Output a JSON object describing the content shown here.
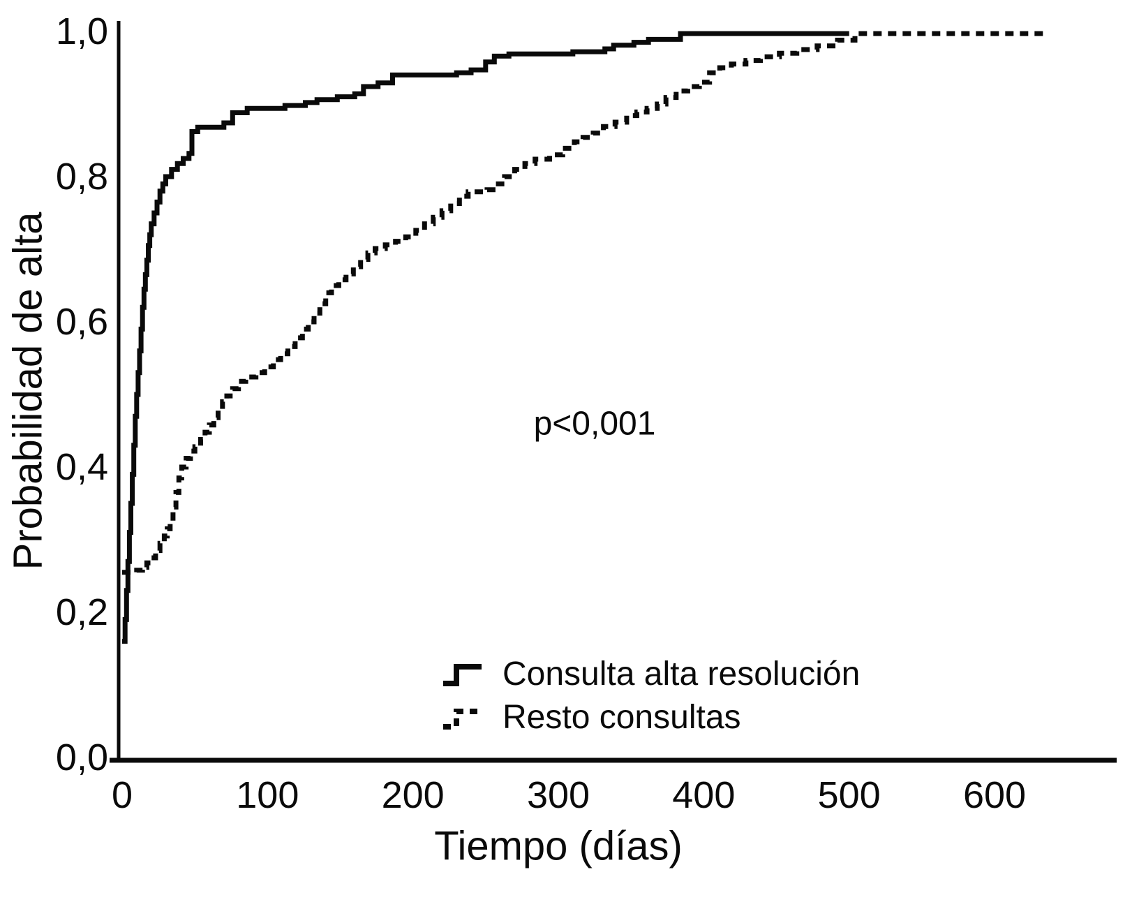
{
  "chart_data": {
    "type": "line",
    "subtype": "kaplan-meier-step",
    "title": "",
    "xlabel": "Tiempo (días)",
    "ylabel": "Probabilidad de alta",
    "annotation": "p<0,001",
    "xlim": [
      0,
      640
    ],
    "ylim": [
      0.0,
      1.0
    ],
    "grid": false,
    "legend_position": "inside-bottom-center",
    "xticks": [
      0,
      100,
      200,
      300,
      400,
      500,
      600
    ],
    "xtick_labels": [
      "0",
      "100",
      "200",
      "300",
      "400",
      "500",
      "600"
    ],
    "yticks": [
      0.0,
      0.2,
      0.4,
      0.6,
      0.8,
      1.0
    ],
    "ytick_labels": [
      "0,0",
      "0,2",
      "0,4",
      "0,6",
      "0,8",
      "1,0"
    ],
    "legend": [
      {
        "name": "Consulta alta resolución",
        "style": "solid"
      },
      {
        "name": "Resto consultas",
        "style": "dashed"
      }
    ],
    "line_color": "#0a0a0a",
    "series": [
      {
        "name": "Consulta alta resolución",
        "style": "solid",
        "points": [
          [
            0,
            0.16
          ],
          [
            2,
            0.19
          ],
          [
            3,
            0.23
          ],
          [
            4,
            0.27
          ],
          [
            5,
            0.31
          ],
          [
            6,
            0.35
          ],
          [
            7,
            0.39
          ],
          [
            8,
            0.43
          ],
          [
            9,
            0.47
          ],
          [
            10,
            0.5
          ],
          [
            11,
            0.53
          ],
          [
            12,
            0.56
          ],
          [
            13,
            0.59
          ],
          [
            14,
            0.62
          ],
          [
            15,
            0.645
          ],
          [
            16,
            0.665
          ],
          [
            17,
            0.685
          ],
          [
            18,
            0.705
          ],
          [
            19,
            0.72
          ],
          [
            20,
            0.735
          ],
          [
            22,
            0.75
          ],
          [
            24,
            0.765
          ],
          [
            26,
            0.78
          ],
          [
            28,
            0.79
          ],
          [
            30,
            0.8
          ],
          [
            34,
            0.81
          ],
          [
            38,
            0.818
          ],
          [
            42,
            0.825
          ],
          [
            46,
            0.832
          ],
          [
            48,
            0.862
          ],
          [
            52,
            0.868
          ],
          [
            70,
            0.874
          ],
          [
            76,
            0.888
          ],
          [
            86,
            0.894
          ],
          [
            112,
            0.898
          ],
          [
            126,
            0.902
          ],
          [
            134,
            0.906
          ],
          [
            148,
            0.91
          ],
          [
            160,
            0.914
          ],
          [
            166,
            0.924
          ],
          [
            176,
            0.929
          ],
          [
            186,
            0.94
          ],
          [
            230,
            0.943
          ],
          [
            240,
            0.947
          ],
          [
            250,
            0.958
          ],
          [
            256,
            0.966
          ],
          [
            266,
            0.969
          ],
          [
            310,
            0.972
          ],
          [
            332,
            0.976
          ],
          [
            338,
            0.981
          ],
          [
            352,
            0.985
          ],
          [
            362,
            0.989
          ],
          [
            384,
            0.997
          ],
          [
            500,
            0.997
          ]
        ]
      },
      {
        "name": "Resto consultas",
        "style": "dashed",
        "points": [
          [
            0,
            0.255
          ],
          [
            10,
            0.258
          ],
          [
            14,
            0.262
          ],
          [
            17,
            0.268
          ],
          [
            20,
            0.275
          ],
          [
            23,
            0.285
          ],
          [
            26,
            0.295
          ],
          [
            29,
            0.305
          ],
          [
            31,
            0.315
          ],
          [
            33,
            0.325
          ],
          [
            35,
            0.345
          ],
          [
            37,
            0.365
          ],
          [
            39,
            0.385
          ],
          [
            41,
            0.4
          ],
          [
            44,
            0.412
          ],
          [
            47,
            0.422
          ],
          [
            50,
            0.428
          ],
          [
            54,
            0.438
          ],
          [
            57,
            0.448
          ],
          [
            60,
            0.458
          ],
          [
            63,
            0.468
          ],
          [
            66,
            0.478
          ],
          [
            69,
            0.49
          ],
          [
            72,
            0.498
          ],
          [
            76,
            0.508
          ],
          [
            80,
            0.518
          ],
          [
            85,
            0.524
          ],
          [
            92,
            0.53
          ],
          [
            98,
            0.538
          ],
          [
            104,
            0.548
          ],
          [
            109,
            0.556
          ],
          [
            114,
            0.566
          ],
          [
            119,
            0.578
          ],
          [
            124,
            0.59
          ],
          [
            128,
            0.6
          ],
          [
            132,
            0.612
          ],
          [
            136,
            0.625
          ],
          [
            140,
            0.64
          ],
          [
            144,
            0.65
          ],
          [
            149,
            0.658
          ],
          [
            154,
            0.666
          ],
          [
            159,
            0.676
          ],
          [
            164,
            0.686
          ],
          [
            169,
            0.695
          ],
          [
            174,
            0.701
          ],
          [
            181,
            0.706
          ],
          [
            188,
            0.711
          ],
          [
            195,
            0.717
          ],
          [
            202,
            0.726
          ],
          [
            208,
            0.735
          ],
          [
            214,
            0.744
          ],
          [
            220,
            0.753
          ],
          [
            226,
            0.763
          ],
          [
            232,
            0.773
          ],
          [
            238,
            0.779
          ],
          [
            251,
            0.782
          ],
          [
            257,
            0.79
          ],
          [
            263,
            0.8
          ],
          [
            270,
            0.81
          ],
          [
            277,
            0.818
          ],
          [
            284,
            0.824
          ],
          [
            294,
            0.83
          ],
          [
            303,
            0.839
          ],
          [
            311,
            0.848
          ],
          [
            317,
            0.854
          ],
          [
            324,
            0.86
          ],
          [
            331,
            0.869
          ],
          [
            339,
            0.875
          ],
          [
            347,
            0.884
          ],
          [
            354,
            0.889
          ],
          [
            361,
            0.894
          ],
          [
            368,
            0.9
          ],
          [
            374,
            0.909
          ],
          [
            381,
            0.918
          ],
          [
            389,
            0.924
          ],
          [
            397,
            0.93
          ],
          [
            404,
            0.943
          ],
          [
            411,
            0.95
          ],
          [
            419,
            0.955
          ],
          [
            429,
            0.96
          ],
          [
            439,
            0.965
          ],
          [
            452,
            0.97
          ],
          [
            464,
            0.975
          ],
          [
            478,
            0.98
          ],
          [
            492,
            0.988
          ],
          [
            504,
            0.997
          ],
          [
            635,
            0.997
          ]
        ]
      }
    ]
  }
}
